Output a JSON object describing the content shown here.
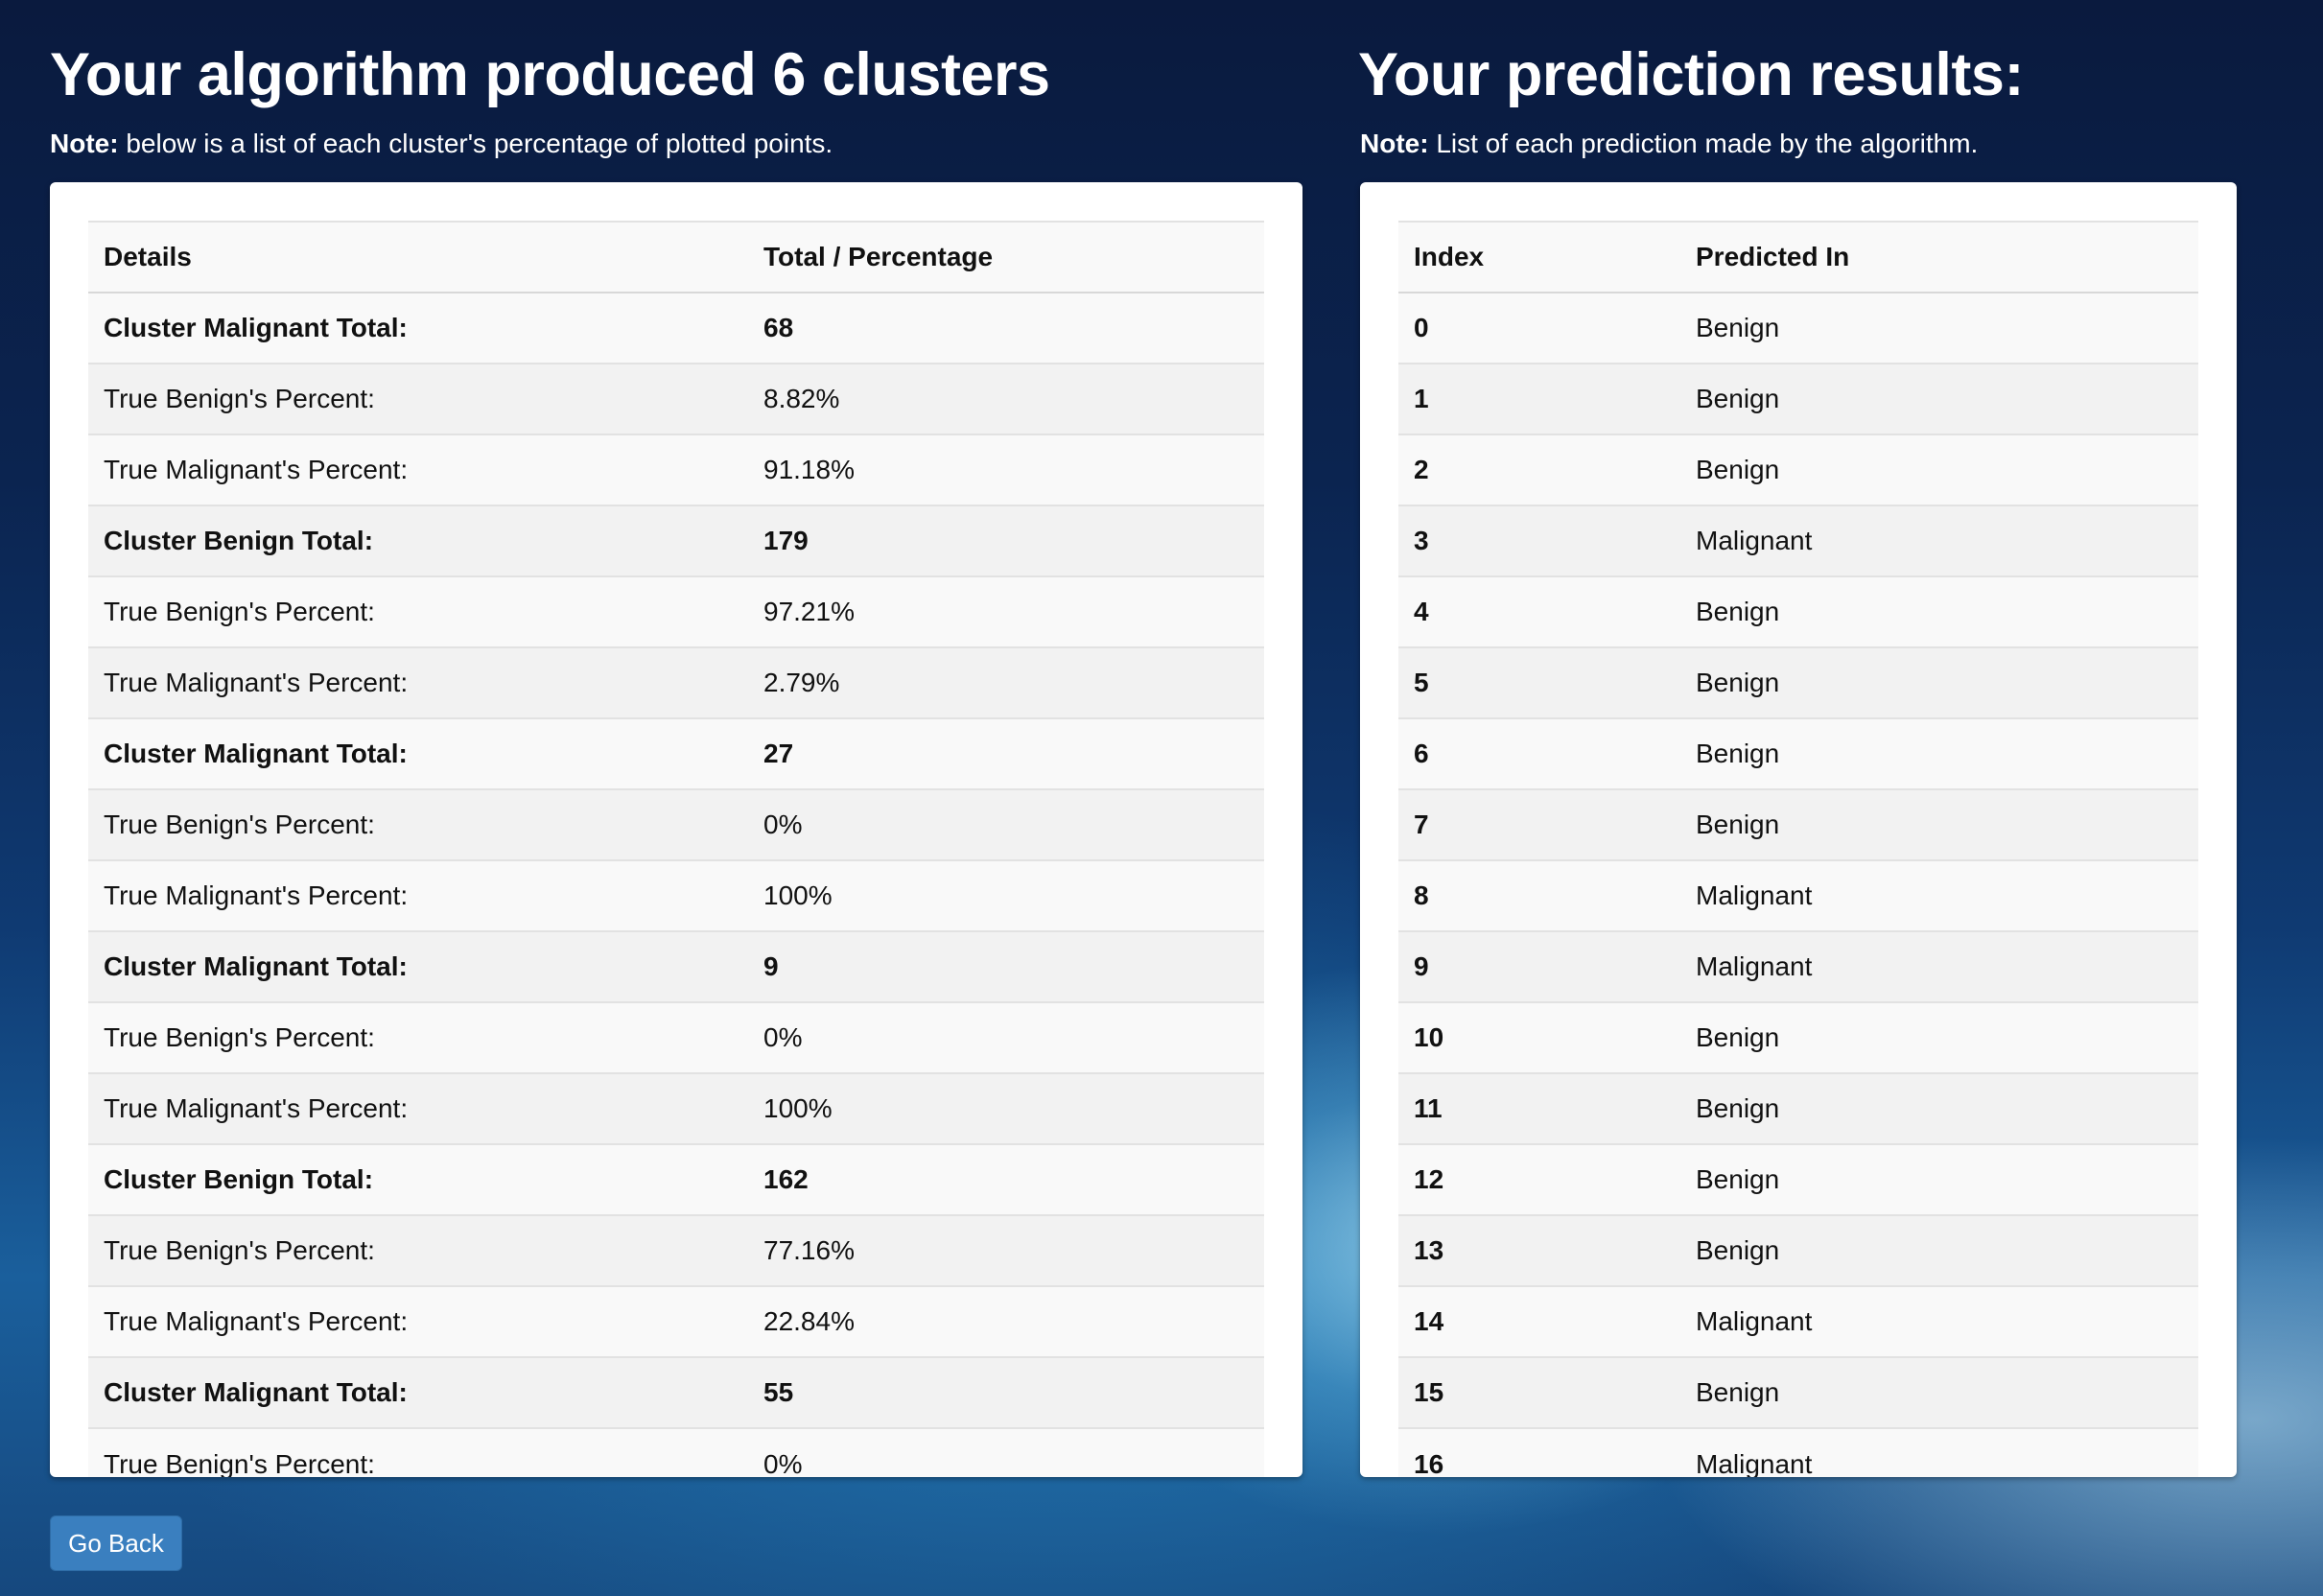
{
  "clusters_section": {
    "heading": "Your algorithm produced 6 clusters",
    "note_label": "Note:",
    "note_text": " below is a list of each cluster's percentage of plotted points.",
    "table": {
      "columns": [
        "Details",
        "Total / Percentage"
      ],
      "rows": [
        {
          "detail": "Cluster Malignant Total:",
          "value": "68",
          "total": true
        },
        {
          "detail": "True Benign's Percent:",
          "value": "8.82%",
          "total": false
        },
        {
          "detail": "True Malignant's Percent:",
          "value": "91.18%",
          "total": false
        },
        {
          "detail": "Cluster Benign Total:",
          "value": "179",
          "total": true
        },
        {
          "detail": "True Benign's Percent:",
          "value": "97.21%",
          "total": false
        },
        {
          "detail": "True Malignant's Percent:",
          "value": "2.79%",
          "total": false
        },
        {
          "detail": "Cluster Malignant Total:",
          "value": "27",
          "total": true
        },
        {
          "detail": "True Benign's Percent:",
          "value": "0%",
          "total": false
        },
        {
          "detail": "True Malignant's Percent:",
          "value": "100%",
          "total": false
        },
        {
          "detail": "Cluster Malignant Total:",
          "value": "9",
          "total": true
        },
        {
          "detail": "True Benign's Percent:",
          "value": "0%",
          "total": false
        },
        {
          "detail": "True Malignant's Percent:",
          "value": "100%",
          "total": false
        },
        {
          "detail": "Cluster Benign Total:",
          "value": "162",
          "total": true
        },
        {
          "detail": "True Benign's Percent:",
          "value": "77.16%",
          "total": false
        },
        {
          "detail": "True Malignant's Percent:",
          "value": "22.84%",
          "total": false
        },
        {
          "detail": "Cluster Malignant Total:",
          "value": "55",
          "total": true
        },
        {
          "detail": "True Benign's Percent:",
          "value": "0%",
          "total": false
        }
      ]
    }
  },
  "predictions_section": {
    "heading": "Your prediction results:",
    "note_label": "Note:",
    "note_text": " List of each prediction made by the algorithm.",
    "table": {
      "columns": [
        "Index",
        "Predicted In"
      ],
      "rows": [
        {
          "index": "0",
          "prediction": "Benign"
        },
        {
          "index": "1",
          "prediction": "Benign"
        },
        {
          "index": "2",
          "prediction": "Benign"
        },
        {
          "index": "3",
          "prediction": "Malignant"
        },
        {
          "index": "4",
          "prediction": "Benign"
        },
        {
          "index": "5",
          "prediction": "Benign"
        },
        {
          "index": "6",
          "prediction": "Benign"
        },
        {
          "index": "7",
          "prediction": "Benign"
        },
        {
          "index": "8",
          "prediction": "Malignant"
        },
        {
          "index": "9",
          "prediction": "Malignant"
        },
        {
          "index": "10",
          "prediction": "Benign"
        },
        {
          "index": "11",
          "prediction": "Benign"
        },
        {
          "index": "12",
          "prediction": "Benign"
        },
        {
          "index": "13",
          "prediction": "Benign"
        },
        {
          "index": "14",
          "prediction": "Malignant"
        },
        {
          "index": "15",
          "prediction": "Benign"
        },
        {
          "index": "16",
          "prediction": "Malignant"
        }
      ]
    }
  },
  "actions": {
    "back_label": "Go Back"
  }
}
